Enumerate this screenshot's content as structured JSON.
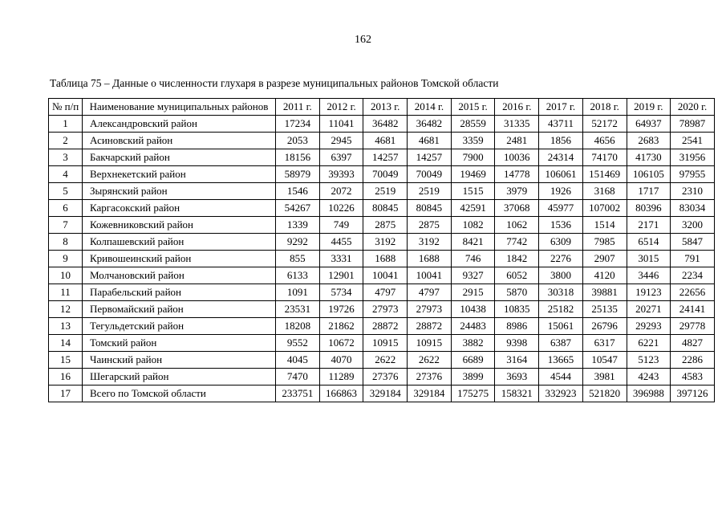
{
  "page": {
    "number": "162"
  },
  "table": {
    "caption": "Таблица 75 – Данные о численности глухаря в разрезе муниципальных районов Томской области",
    "columns": [
      "№ п/п",
      "Наименование муниципальных районов",
      "2011 г.",
      "2012 г.",
      "2013 г.",
      "2014 г.",
      "2015 г.",
      "2016 г.",
      "2017 г.",
      "2018 г.",
      "2019 г.",
      "2020 г."
    ],
    "rows": [
      {
        "num": "1",
        "name": "Александровский район",
        "values": [
          "17234",
          "11041",
          "36482",
          "36482",
          "28559",
          "31335",
          "43711",
          "52172",
          "64937",
          "78987"
        ]
      },
      {
        "num": "2",
        "name": "Асиновский район",
        "values": [
          "2053",
          "2945",
          "4681",
          "4681",
          "3359",
          "2481",
          "1856",
          "4656",
          "2683",
          "2541"
        ]
      },
      {
        "num": "3",
        "name": "Бакчарский район",
        "values": [
          "18156",
          "6397",
          "14257",
          "14257",
          "7900",
          "10036",
          "24314",
          "74170",
          "41730",
          "31956"
        ]
      },
      {
        "num": "4",
        "name": "Верхнекетский район",
        "values": [
          "58979",
          "39393",
          "70049",
          "70049",
          "19469",
          "14778",
          "106061",
          "151469",
          "106105",
          "97955"
        ]
      },
      {
        "num": "5",
        "name": "Зырянский район",
        "values": [
          "1546",
          "2072",
          "2519",
          "2519",
          "1515",
          "3979",
          "1926",
          "3168",
          "1717",
          "2310"
        ]
      },
      {
        "num": "6",
        "name": "Каргасокский район",
        "values": [
          "54267",
          "10226",
          "80845",
          "80845",
          "42591",
          "37068",
          "45977",
          "107002",
          "80396",
          "83034"
        ]
      },
      {
        "num": "7",
        "name": "Кожевниковский район",
        "values": [
          "1339",
          "749",
          "2875",
          "2875",
          "1082",
          "1062",
          "1536",
          "1514",
          "2171",
          "3200"
        ]
      },
      {
        "num": "8",
        "name": "Колпашевский район",
        "values": [
          "9292",
          "4455",
          "3192",
          "3192",
          "8421",
          "7742",
          "6309",
          "7985",
          "6514",
          "5847"
        ]
      },
      {
        "num": "9",
        "name": "Кривошеинский район",
        "values": [
          "855",
          "3331",
          "1688",
          "1688",
          "746",
          "1842",
          "2276",
          "2907",
          "3015",
          "791"
        ]
      },
      {
        "num": "10",
        "name": "Молчановский район",
        "values": [
          "6133",
          "12901",
          "10041",
          "10041",
          "9327",
          "6052",
          "3800",
          "4120",
          "3446",
          "2234"
        ]
      },
      {
        "num": "11",
        "name": "Парабельский район",
        "values": [
          "1091",
          "5734",
          "4797",
          "4797",
          "2915",
          "5870",
          "30318",
          "39881",
          "19123",
          "22656"
        ]
      },
      {
        "num": "12",
        "name": "Первомайский район",
        "values": [
          "23531",
          "19726",
          "27973",
          "27973",
          "10438",
          "10835",
          "25182",
          "25135",
          "20271",
          "24141"
        ]
      },
      {
        "num": "13",
        "name": "Тегульдетский район",
        "values": [
          "18208",
          "21862",
          "28872",
          "28872",
          "24483",
          "8986",
          "15061",
          "26796",
          "29293",
          "29778"
        ]
      },
      {
        "num": "14",
        "name": "Томский район",
        "values": [
          "9552",
          "10672",
          "10915",
          "10915",
          "3882",
          "9398",
          "6387",
          "6317",
          "6221",
          "4827"
        ]
      },
      {
        "num": "15",
        "name": "Чаинский район",
        "values": [
          "4045",
          "4070",
          "2622",
          "2622",
          "6689",
          "3164",
          "13665",
          "10547",
          "5123",
          "2286"
        ]
      },
      {
        "num": "16",
        "name": "Шегарский район",
        "values": [
          "7470",
          "11289",
          "27376",
          "27376",
          "3899",
          "3693",
          "4544",
          "3981",
          "4243",
          "4583"
        ]
      },
      {
        "num": "17",
        "name": "Всего по Томской области",
        "values": [
          "233751",
          "166863",
          "329184",
          "329184",
          "175275",
          "158321",
          "332923",
          "521820",
          "396988",
          "397126"
        ]
      }
    ]
  }
}
